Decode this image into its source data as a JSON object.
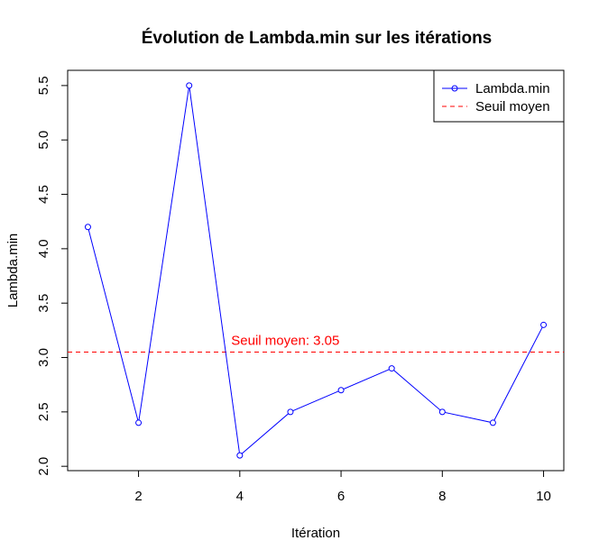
{
  "chart_data": {
    "type": "line",
    "title": "Évolution de Lambda.min sur les itérations",
    "xlabel": "Itération",
    "ylabel": "Lambda.min",
    "xlim": [
      0.6,
      10.4
    ],
    "ylim": [
      1.96,
      5.64
    ],
    "x_ticks": [
      2,
      4,
      6,
      8,
      10
    ],
    "y_ticks": [
      2.0,
      2.5,
      3.0,
      3.5,
      4.0,
      4.5,
      5.0,
      5.5
    ],
    "x_tick_labels": [
      "2",
      "4",
      "6",
      "8",
      "10"
    ],
    "y_tick_labels": [
      "2.0",
      "2.5",
      "3.0",
      "3.5",
      "4.0",
      "4.5",
      "5.0",
      "5.5"
    ],
    "grid": false,
    "series": [
      {
        "name": "Lambda.min",
        "color": "#0000ff",
        "line_style": "solid",
        "marker": "open-circle",
        "x": [
          1,
          2,
          3,
          4,
          5,
          6,
          7,
          8,
          9,
          10
        ],
        "values": [
          4.2,
          2.4,
          5.5,
          2.1,
          2.5,
          2.7,
          2.9,
          2.5,
          2.4,
          3.3
        ]
      }
    ],
    "reference_line": {
      "name": "Seuil moyen",
      "y": 3.05,
      "color": "#ff0000",
      "line_style": "dashed"
    },
    "annotation": {
      "text": "Seuil moyen: 3.05",
      "x": 4.9,
      "y": 3.05,
      "color": "#ff0000"
    },
    "legend": {
      "placement": "top-right",
      "entries": [
        "Lambda.min",
        "Seuil moyen"
      ]
    }
  }
}
